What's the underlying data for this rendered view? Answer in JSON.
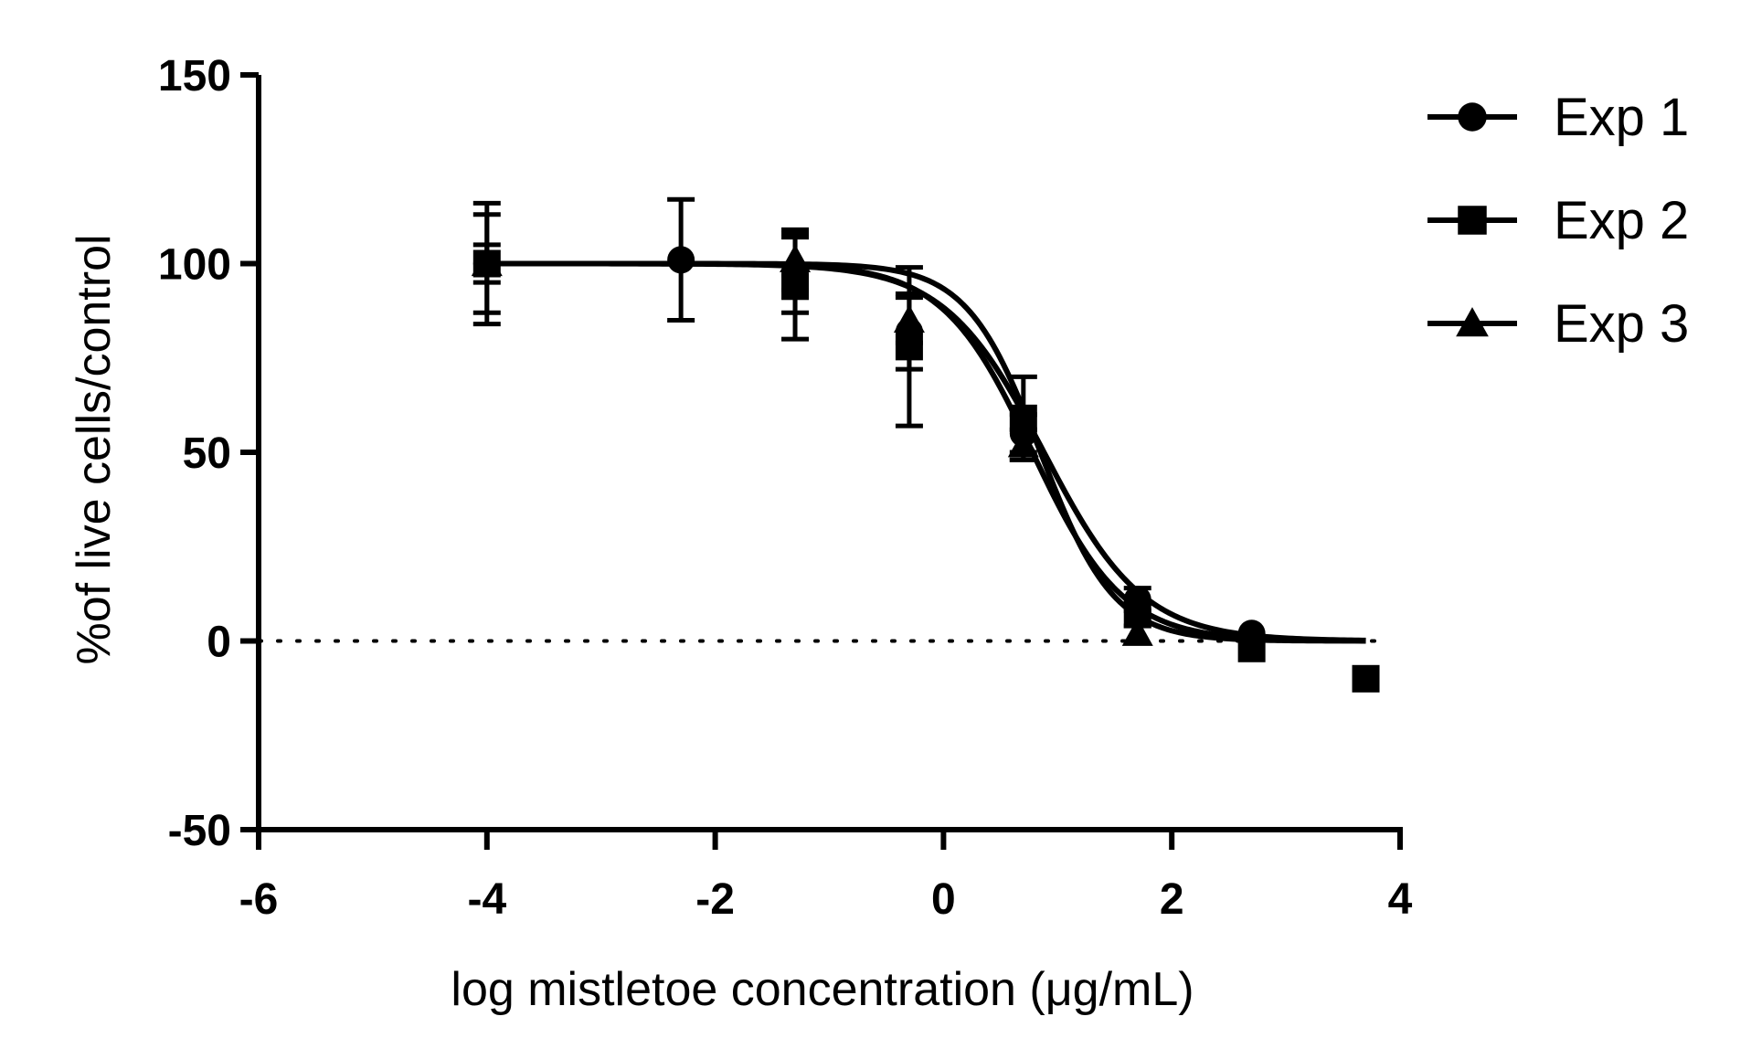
{
  "chart_data": {
    "type": "scatter",
    "title": "",
    "xlabel": "log mistletoe concentration (μg/mL)",
    "ylabel": "%of live cells/control",
    "xlim": [
      -6,
      4
    ],
    "ylim": [
      -50,
      150
    ],
    "x_ticks": [
      -6,
      -4,
      -2,
      0,
      2,
      4
    ],
    "x_tick_labels": [
      "-6",
      "-4",
      "-2",
      "0",
      "2",
      "4"
    ],
    "y_ticks": [
      150,
      100,
      50,
      0,
      -50
    ],
    "y_tick_labels": [
      "150",
      "100",
      "50",
      "0",
      "-50"
    ],
    "reference_line": {
      "y": 0,
      "style": "dotted",
      "x_range": [
        -6,
        3.8
      ]
    },
    "legend_position": "top-right",
    "series": [
      {
        "name": "Exp 1",
        "label": "Exp 1",
        "marker": "circle",
        "points": [
          {
            "x": -4.0,
            "y": 100,
            "err": 16
          },
          {
            "x": -2.3,
            "y": 101,
            "err": 16
          },
          {
            "x": -1.3,
            "y": 97,
            "err": 10
          },
          {
            "x": -0.3,
            "y": 82,
            "err": 10
          },
          {
            "x": 0.7,
            "y": 55,
            "err": 5
          },
          {
            "x": 1.7,
            "y": 11,
            "err": 3
          },
          {
            "x": 2.7,
            "y": 2,
            "err": 1
          }
        ],
        "fit": {
          "top": 100,
          "bottom": 0,
          "logIC50": 0.88,
          "hill": 1.0
        }
      },
      {
        "name": "Exp 2",
        "label": "Exp 2",
        "marker": "square",
        "points": [
          {
            "x": -4.0,
            "y": 100,
            "err": 13
          },
          {
            "x": -1.3,
            "y": 94,
            "err": 14
          },
          {
            "x": -0.3,
            "y": 78,
            "err": 21
          },
          {
            "x": 0.7,
            "y": 59,
            "err": 11
          },
          {
            "x": 1.7,
            "y": 7,
            "err": 3
          },
          {
            "x": 2.7,
            "y": -2,
            "err": 1
          },
          {
            "x": 3.7,
            "y": -10,
            "err": 1
          }
        ],
        "fit": {
          "top": 100,
          "bottom": 0,
          "logIC50": 0.85,
          "hill": 1.35
        }
      },
      {
        "name": "Exp 3",
        "label": "Exp 3",
        "marker": "triangle",
        "points": [
          {
            "x": -4.0,
            "y": 100,
            "err": 5
          },
          {
            "x": -1.3,
            "y": 101,
            "err": 8
          },
          {
            "x": -0.3,
            "y": 85,
            "err": 6
          },
          {
            "x": 0.7,
            "y": 52,
            "err": 4
          },
          {
            "x": 1.7,
            "y": 2,
            "err": 1
          }
        ],
        "fit": {
          "top": 100,
          "bottom": 0,
          "logIC50": 0.78,
          "hill": 1.1
        }
      }
    ]
  }
}
